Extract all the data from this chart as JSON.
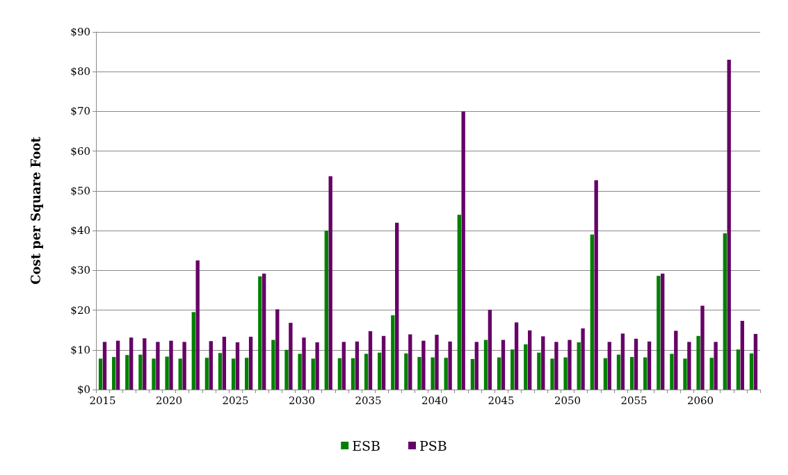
{
  "chart_data": {
    "type": "bar",
    "ylabel": "Cost per Square Foot",
    "categories": [
      "2015",
      null,
      null,
      null,
      null,
      "2020",
      null,
      null,
      null,
      null,
      "2025",
      null,
      null,
      null,
      null,
      "2030",
      null,
      null,
      null,
      null,
      "2035",
      null,
      null,
      null,
      null,
      "2040",
      null,
      null,
      null,
      null,
      "2045",
      null,
      null,
      null,
      null,
      "2050",
      null,
      null,
      null,
      null,
      "2055",
      null,
      null,
      null,
      null,
      "2060",
      null,
      null,
      null,
      null
    ],
    "series": [
      {
        "name": "ESB",
        "color": "#008000",
        "values": [
          7.8,
          8.2,
          8.7,
          8.8,
          7.8,
          8.3,
          7.8,
          19.5,
          8.0,
          9.2,
          7.8,
          8.0,
          28.5,
          12.5,
          10.0,
          9.0,
          7.8,
          40,
          7.9,
          7.9,
          9.0,
          9.3,
          18.7,
          9.1,
          8.2,
          8.1,
          8.0,
          44,
          7.7,
          12.5,
          8.1,
          10.1,
          11.4,
          9.3,
          7.8,
          8.1,
          11.9,
          39,
          7.9,
          8.8,
          8.2,
          8.1,
          28.6,
          9.0,
          7.8,
          13.5,
          8.0,
          39.3,
          10.1,
          9.1
        ]
      },
      {
        "name": "PSB",
        "color": "#660066",
        "values": [
          12.0,
          12.3,
          13.1,
          12.9,
          12.0,
          12.3,
          12.0,
          32.5,
          12.2,
          13.3,
          11.9,
          13.3,
          29.2,
          20.2,
          16.8,
          13.1,
          11.9,
          53.7,
          12.0,
          12.1,
          14.7,
          13.5,
          42,
          13.9,
          12.3,
          13.8,
          12.1,
          70,
          12.0,
          20.1,
          12.5,
          16.9,
          14.9,
          13.4,
          12.0,
          12.5,
          15.4,
          52.7,
          12.0,
          14.1,
          12.8,
          12.1,
          29.2,
          14.8,
          12.0,
          21.1,
          12.0,
          83,
          17.3,
          14.0
        ]
      }
    ],
    "ylim": [
      0,
      90
    ],
    "yticks": [
      {
        "value": 0,
        "label": "$0"
      },
      {
        "value": 10,
        "label": "$10"
      },
      {
        "value": 20,
        "label": "$20"
      },
      {
        "value": 30,
        "label": "$30"
      },
      {
        "value": 40,
        "label": "$40"
      },
      {
        "value": 50,
        "label": "$50"
      },
      {
        "value": 60,
        "label": "$60"
      },
      {
        "value": 70,
        "label": "$70"
      },
      {
        "value": 80,
        "label": "$80"
      },
      {
        "value": 90,
        "label": "$90"
      }
    ],
    "grid": "y",
    "legend": "bottom"
  }
}
